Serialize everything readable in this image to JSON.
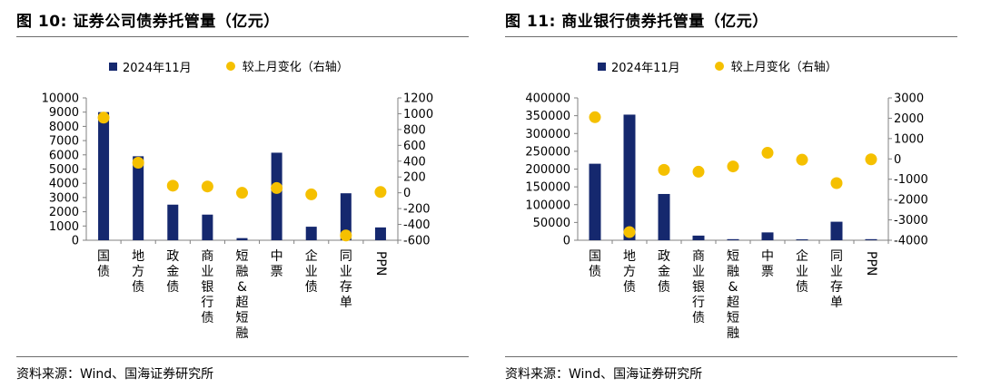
{
  "colors": {
    "bar": "#15286e",
    "dot": "#f5c000",
    "axis": "#808080"
  },
  "charts": [
    {
      "title": "图 10:  证券公司债券托管量（亿元）",
      "legend": {
        "bar_label": "2024年11月",
        "dot_label": "较上月变化（右轴）"
      },
      "source": "资料来源：Wind、国海证券研究所"
    },
    {
      "title": "图 11:  商业银行债券托管量（亿元）",
      "legend": {
        "bar_label": "2024年11月",
        "dot_label": "较上月变化（右轴）"
      },
      "source": "资料来源：Wind、国海证券研究所"
    }
  ],
  "chart_data": [
    {
      "type": "bar+scatter",
      "title": "证券公司债券托管量（亿元）",
      "categories": [
        "国债",
        "地方债",
        "政金债",
        "商业银行债",
        "短融&超短融",
        "中票",
        "企业债",
        "同业存单",
        "PPN"
      ],
      "series": [
        {
          "name": "2024年11月",
          "type": "bar",
          "axis": "left",
          "values": [
            9000,
            5900,
            2500,
            1800,
            150,
            6150,
            950,
            3300,
            900
          ]
        },
        {
          "name": "较上月变化（右轴）",
          "type": "scatter",
          "axis": "right",
          "values": [
            950,
            380,
            90,
            80,
            0,
            60,
            -20,
            -540,
            10
          ]
        }
      ],
      "left_axis": {
        "min": 0,
        "max": 10000,
        "step": 1000,
        "ticks": [
          "0",
          "1000",
          "2000",
          "3000",
          "4000",
          "5000",
          "6000",
          "7000",
          "8000",
          "9000",
          "10000"
        ]
      },
      "right_axis": {
        "min": -600,
        "max": 1200,
        "step": 200,
        "ticks": [
          "-600",
          "-400",
          "-200",
          "0",
          "200",
          "400",
          "600",
          "800",
          "1000",
          "1200"
        ]
      },
      "grid": false,
      "legend_position": "top"
    },
    {
      "type": "bar+scatter",
      "title": "商业银行债券托管量（亿元）",
      "categories": [
        "国债",
        "地方债",
        "政金债",
        "商业银行债",
        "短融&超短融",
        "中票",
        "企业债",
        "同业存单",
        "PPN"
      ],
      "series": [
        {
          "name": "2024年11月",
          "type": "bar",
          "axis": "left",
          "values": [
            215000,
            353000,
            130000,
            13000,
            3000,
            22000,
            2500,
            52000,
            3000
          ]
        },
        {
          "name": "较上月变化（右轴）",
          "type": "scatter",
          "axis": "right",
          "values": [
            2050,
            -3600,
            -540,
            -630,
            -370,
            300,
            -40,
            -1190,
            -20
          ]
        }
      ],
      "left_axis": {
        "min": 0,
        "max": 400000,
        "step": 50000,
        "ticks": [
          "0",
          "50000",
          "100000",
          "150000",
          "200000",
          "250000",
          "300000",
          "350000",
          "400000"
        ]
      },
      "right_axis": {
        "min": -4000,
        "max": 3000,
        "step": 1000,
        "ticks": [
          "-4000",
          "-3000",
          "-2000",
          "-1000",
          "0",
          "1000",
          "2000",
          "3000"
        ]
      },
      "grid": false,
      "legend_position": "top"
    }
  ]
}
